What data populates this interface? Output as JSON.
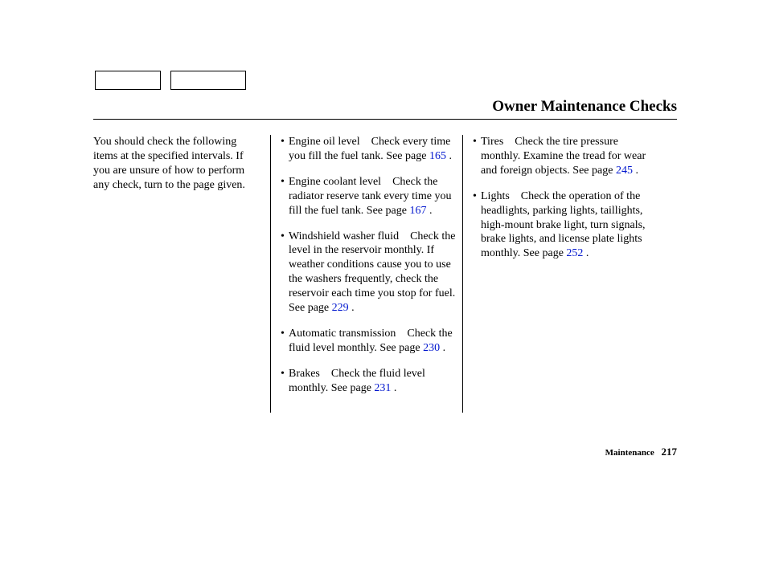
{
  "title": "Owner Maintenance Checks",
  "intro": "You should check the following items at the specified intervals. If you are unsure of how to perform any check, turn to the page given.",
  "mid_items": [
    {
      "lead": "Engine oil level",
      "text": "Check every time you fill the fuel tank. See page ",
      "page": "165",
      "tail": " ."
    },
    {
      "lead": "Engine coolant level",
      "text": "Check the radiator reserve tank every time you fill the fuel tank. See page ",
      "page": "167",
      "tail": " ."
    },
    {
      "lead": "Windshield washer fluid",
      "text": "Check the level in the reservoir monthly. If weather conditions cause you to use the washers frequently, check the reservoir each time you stop for fuel. See page ",
      "page": "229",
      "tail": " ."
    },
    {
      "lead": "Automatic transmission",
      "text": "Check the fluid level monthly. See page ",
      "page": "230",
      "tail": " ."
    },
    {
      "lead": "Brakes",
      "text": "Check the fluid level monthly. See page ",
      "page": "231",
      "tail": " ."
    }
  ],
  "right_items": [
    {
      "lead": "Tires",
      "text": "Check the tire pressure monthly. Examine the tread for wear and foreign objects. See page ",
      "page": "245",
      "tail": " ."
    },
    {
      "lead": "Lights",
      "text": "Check the operation of the headlights, parking lights, taillights, high-mount brake light, turn signals, brake lights, and license plate lights monthly. See page ",
      "page": "252",
      "tail": " ."
    }
  ],
  "footer": {
    "label": "Maintenance",
    "page_number": "217"
  },
  "colors": {
    "link": "#0016ce",
    "text": "#000000",
    "background": "#ffffff"
  }
}
